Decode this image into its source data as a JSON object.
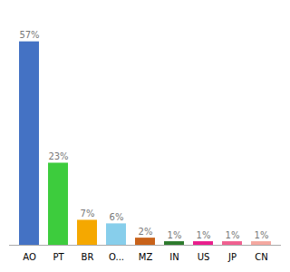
{
  "chart_data": {
    "type": "bar",
    "categories": [
      "AO",
      "PT",
      "BR",
      "O...",
      "MZ",
      "IN",
      "US",
      "JP",
      "CN"
    ],
    "values": [
      57,
      23,
      7,
      6,
      2,
      1,
      1,
      1,
      1
    ],
    "value_labels": [
      "57%",
      "23%",
      "7%",
      "6%",
      "2%",
      "1%",
      "1%",
      "1%",
      "1%"
    ],
    "colors": [
      "#4472c4",
      "#3dcc3d",
      "#f5a800",
      "#87ceeb",
      "#c8621a",
      "#2d7a2d",
      "#e91e8c",
      "#f06090",
      "#f4a8a0"
    ],
    "ylim": [
      0,
      63
    ],
    "data_labels": true,
    "tick_labels": "x",
    "grid": false
  }
}
